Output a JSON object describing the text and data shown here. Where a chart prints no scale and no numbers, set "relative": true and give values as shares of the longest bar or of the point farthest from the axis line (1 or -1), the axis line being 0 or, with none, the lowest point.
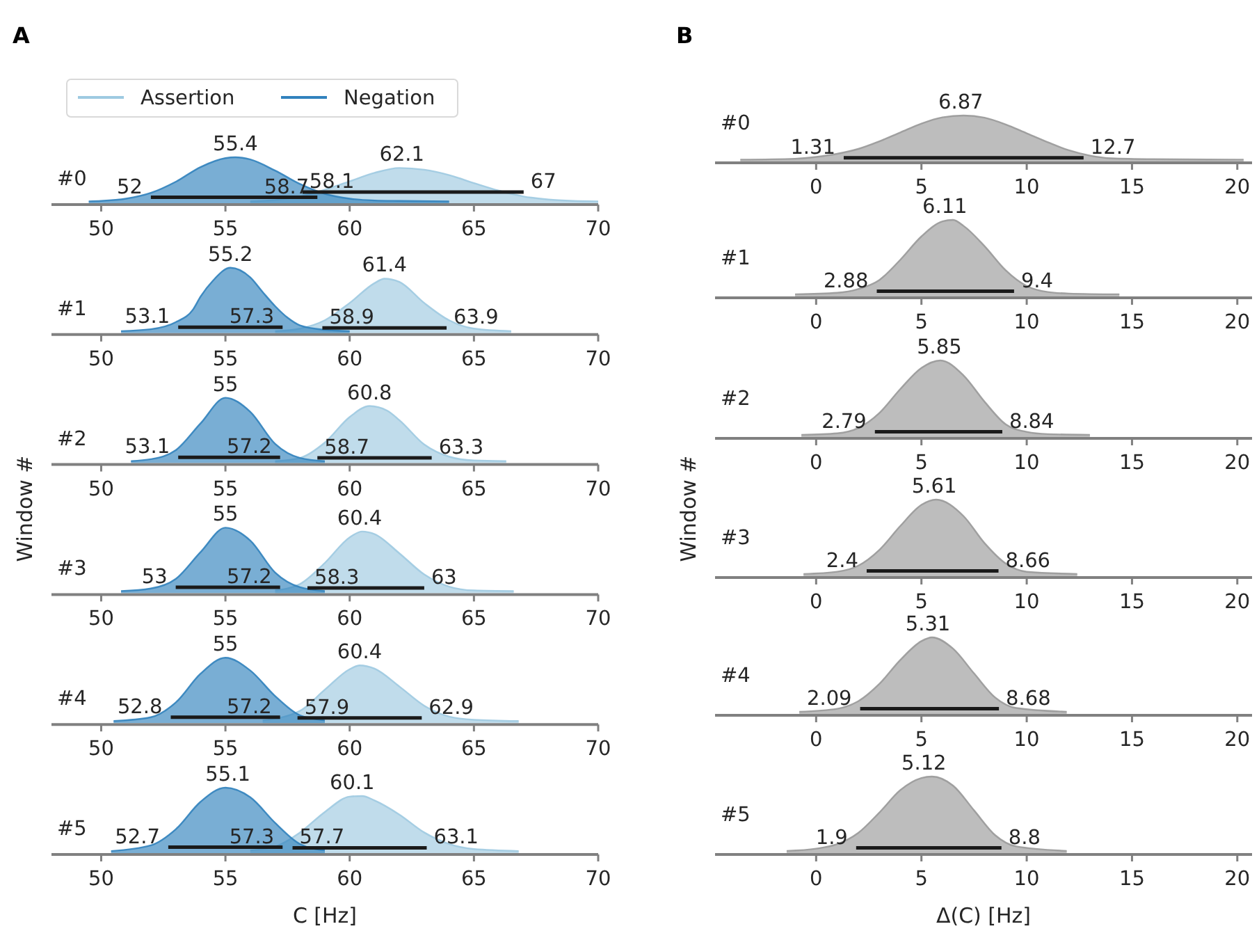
{
  "chart_data": [
    {
      "type": "area",
      "title": "A",
      "relative": true,
      "xlim": [
        48,
        70
      ],
      "xticks": [
        50,
        55,
        60,
        65,
        70
      ],
      "legend": "top",
      "series": [
        {
          "name": "Assertion",
          "color": "#9ecae1",
          "x": [
            56,
            57,
            58,
            59,
            60,
            61,
            62,
            63,
            64,
            65,
            66,
            67,
            68,
            69,
            70
          ],
          "values": [
            0.01,
            0.04,
            0.12,
            0.27,
            0.46,
            0.65,
            0.76,
            0.72,
            0.6,
            0.42,
            0.25,
            0.12,
            0.05,
            0.02,
            0.01
          ]
        },
        {
          "name": "Negation",
          "color": "#3182bd",
          "x": [
            49.5,
            50,
            51,
            52,
            53,
            54,
            55,
            55.4,
            56,
            57,
            58,
            59,
            60,
            61,
            62,
            64
          ],
          "values": [
            0.01,
            0.02,
            0.07,
            0.2,
            0.45,
            0.78,
            0.98,
            1,
            0.95,
            0.7,
            0.4,
            0.18,
            0.07,
            0.03,
            0.02,
            0.01
          ]
        },
        {
          "type": "line",
          "color": "#1a1a1a",
          "x": [
            58.1,
            67
          ],
          "values": [
            0.22,
            0.22
          ]
        },
        {
          "type": "line",
          "color": "#1a1a1a",
          "x": [
            52,
            58.7
          ],
          "values": [
            0.1,
            0.1
          ]
        }
      ],
      "annotations": [
        "#0",
        {
          "text": "55.4",
          "x": 55.4,
          "y": 1
        },
        {
          "text": "62.1",
          "x": 62.1,
          "y": 0.76
        },
        {
          "text": "52",
          "x": 52,
          "y": 0.1
        },
        {
          "text": "58.7",
          "x": 58.7,
          "y": 0.1
        },
        {
          "text": "58.1",
          "x": 58.1,
          "y": 0.22
        },
        {
          "text": "67",
          "x": 67,
          "y": 0.22
        }
      ]
    },
    {
      "type": "area",
      "relative": true,
      "xlim": [
        48,
        70
      ],
      "xticks": [
        50,
        55,
        60,
        65,
        70
      ],
      "series": [
        {
          "color": "#9ecae1",
          "x": [
            57,
            58,
            59,
            60,
            61,
            61.4,
            62,
            63,
            64,
            65,
            66.5
          ],
          "values": [
            0.01,
            0.05,
            0.18,
            0.45,
            0.76,
            0.83,
            0.78,
            0.45,
            0.18,
            0.05,
            0.01
          ]
        },
        {
          "color": "#3182bd",
          "x": [
            50.8,
            52,
            53,
            53.7,
            54,
            54.5,
            55.2,
            56,
            56.5,
            57,
            57.5,
            58,
            59,
            60
          ],
          "values": [
            0.01,
            0.04,
            0.15,
            0.35,
            0.55,
            0.8,
            1,
            0.85,
            0.62,
            0.4,
            0.22,
            0.1,
            0.03,
            0.01
          ]
        },
        {
          "type": "line",
          "color": "#1a1a1a",
          "x": [
            58.9,
            63.9
          ],
          "values": [
            0.06,
            0.06
          ]
        },
        {
          "type": "line",
          "color": "#1a1a1a",
          "x": [
            53.1,
            57.3
          ],
          "values": [
            0.07,
            0.07
          ]
        }
      ],
      "annotations": [
        "#1",
        {
          "text": "55.2",
          "x": 55.2,
          "y": 1
        },
        {
          "text": "61.4",
          "x": 61.4,
          "y": 0.83
        },
        {
          "text": "53.1",
          "x": 53.1,
          "y": 0.07
        },
        {
          "text": "57.3",
          "x": 57.3,
          "y": 0.07
        },
        {
          "text": "58.9",
          "x": 58.9,
          "y": 0.06
        },
        {
          "text": "63.9",
          "x": 63.9,
          "y": 0.06
        }
      ]
    },
    {
      "type": "area",
      "relative": true,
      "xlim": [
        48,
        70
      ],
      "xticks": [
        50,
        55,
        60,
        65,
        70
      ],
      "series": [
        {
          "color": "#9ecae1",
          "x": [
            57,
            58,
            59,
            60,
            60.8,
            61.5,
            62,
            63,
            64,
            65,
            66.3
          ],
          "values": [
            0.01,
            0.06,
            0.3,
            0.7,
            0.87,
            0.8,
            0.65,
            0.27,
            0.08,
            0.02,
            0.01
          ]
        },
        {
          "color": "#3182bd",
          "x": [
            51.2,
            52,
            53,
            54,
            55,
            56,
            57,
            58,
            59
          ],
          "values": [
            0.01,
            0.04,
            0.18,
            0.6,
            1,
            0.78,
            0.28,
            0.06,
            0.01
          ]
        },
        {
          "type": "line",
          "color": "#1a1a1a",
          "x": [
            58.7,
            63.3
          ],
          "values": [
            0.06,
            0.06
          ]
        },
        {
          "type": "line",
          "color": "#1a1a1a",
          "x": [
            53.1,
            57.2
          ],
          "values": [
            0.07,
            0.07
          ]
        }
      ],
      "annotations": [
        "#2",
        {
          "text": "55",
          "x": 55,
          "y": 1
        },
        {
          "text": "60.8",
          "x": 60.8,
          "y": 0.87
        },
        {
          "text": "53.1",
          "x": 53.1,
          "y": 0.07
        },
        {
          "text": "57.2",
          "x": 57.2,
          "y": 0.07
        },
        {
          "text": "58.7",
          "x": 58.7,
          "y": 0.06
        },
        {
          "text": "63.3",
          "x": 63.3,
          "y": 0.06
        }
      ]
    },
    {
      "type": "area",
      "relative": true,
      "ylabel": "Window #",
      "xlim": [
        48,
        70
      ],
      "xticks": [
        50,
        55,
        60,
        65,
        70
      ],
      "series": [
        {
          "color": "#9ecae1",
          "x": [
            57,
            58,
            59,
            60,
            60.5,
            61,
            62,
            63,
            64,
            65,
            66.6
          ],
          "values": [
            0.02,
            0.12,
            0.45,
            0.85,
            0.94,
            0.9,
            0.6,
            0.27,
            0.08,
            0.02,
            0.01
          ]
        },
        {
          "color": "#3182bd",
          "x": [
            50.8,
            52,
            53,
            54,
            55,
            56,
            57,
            58,
            59
          ],
          "values": [
            0.01,
            0.05,
            0.2,
            0.62,
            1,
            0.8,
            0.3,
            0.07,
            0.01
          ]
        },
        {
          "type": "line",
          "color": "#1a1a1a",
          "x": [
            58.3,
            63
          ],
          "values": [
            0.06,
            0.06
          ]
        },
        {
          "type": "line",
          "color": "#1a1a1a",
          "x": [
            53,
            57.2
          ],
          "values": [
            0.07,
            0.07
          ]
        }
      ],
      "annotations": [
        "#3",
        {
          "text": "55",
          "x": 55,
          "y": 1
        },
        {
          "text": "60.4",
          "x": 60.4,
          "y": 0.94
        },
        {
          "text": "53",
          "x": 53,
          "y": 0.07
        },
        {
          "text": "57.2",
          "x": 57.2,
          "y": 0.07
        },
        {
          "text": "58.3",
          "x": 58.3,
          "y": 0.06
        },
        {
          "text": "63",
          "x": 63,
          "y": 0.06
        }
      ]
    },
    {
      "type": "area",
      "relative": true,
      "xlim": [
        48,
        70
      ],
      "xticks": [
        50,
        55,
        60,
        65,
        70
      ],
      "series": [
        {
          "color": "#9ecae1",
          "x": [
            56.5,
            58,
            59,
            60,
            60.4,
            61,
            62,
            63,
            64,
            65,
            66.8
          ],
          "values": [
            0.02,
            0.17,
            0.5,
            0.82,
            0.88,
            0.83,
            0.55,
            0.25,
            0.08,
            0.03,
            0.01
          ]
        },
        {
          "color": "#3182bd",
          "x": [
            50.5,
            52,
            53,
            54,
            55,
            56,
            57,
            58,
            59
          ],
          "values": [
            0.01,
            0.07,
            0.3,
            0.75,
            1,
            0.8,
            0.4,
            0.1,
            0.02
          ]
        },
        {
          "type": "line",
          "color": "#1a1a1a",
          "x": [
            57.9,
            62.9
          ],
          "values": [
            0.06,
            0.06
          ]
        },
        {
          "type": "line",
          "color": "#1a1a1a",
          "x": [
            52.8,
            57.2
          ],
          "values": [
            0.07,
            0.07
          ]
        }
      ],
      "annotations": [
        "#4",
        {
          "text": "55",
          "x": 55,
          "y": 1
        },
        {
          "text": "60.4",
          "x": 60.4,
          "y": 0.88
        },
        {
          "text": "52.8",
          "x": 52.8,
          "y": 0.07
        },
        {
          "text": "57.2",
          "x": 57.2,
          "y": 0.07
        },
        {
          "text": "57.9",
          "x": 57.9,
          "y": 0.06
        },
        {
          "text": "62.9",
          "x": 62.9,
          "y": 0.06
        }
      ]
    },
    {
      "type": "area",
      "relative": true,
      "xlabel": "C [Hz]",
      "xlim": [
        48,
        70
      ],
      "xticks": [
        50,
        55,
        60,
        65,
        70
      ],
      "series": [
        {
          "color": "#9ecae1",
          "x": [
            56,
            57,
            58,
            59,
            60,
            60.5,
            61,
            62,
            63,
            64,
            65,
            66.8
          ],
          "values": [
            0.02,
            0.08,
            0.3,
            0.62,
            0.86,
            0.87,
            0.8,
            0.58,
            0.3,
            0.12,
            0.04,
            0.01
          ]
        },
        {
          "color": "#3182bd",
          "x": [
            50.4,
            52,
            53,
            54,
            55,
            56,
            57,
            58,
            59
          ],
          "values": [
            0.01,
            0.1,
            0.35,
            0.78,
            1,
            0.85,
            0.45,
            0.12,
            0.02
          ]
        },
        {
          "type": "line",
          "color": "#1a1a1a",
          "x": [
            57.7,
            63.1
          ],
          "values": [
            0.06,
            0.06
          ]
        },
        {
          "type": "line",
          "color": "#1a1a1a",
          "x": [
            52.7,
            57.3
          ],
          "values": [
            0.07,
            0.07
          ]
        }
      ],
      "annotations": [
        "#5",
        {
          "text": "55.1",
          "x": 55.1,
          "y": 1
        },
        {
          "text": "60.1",
          "x": 60.1,
          "y": 0.87
        },
        {
          "text": "52.7",
          "x": 52.7,
          "y": 0.07
        },
        {
          "text": "57.3",
          "x": 57.3,
          "y": 0.07
        },
        {
          "text": "57.7",
          "x": 57.7,
          "y": 0.06
        },
        {
          "text": "63.1",
          "x": 63.1,
          "y": 0.06
        }
      ]
    },
    {
      "type": "area",
      "title": "B",
      "relative": true,
      "xlim": [
        -4.8,
        20.7
      ],
      "xticks": [
        0,
        5,
        10,
        15,
        20
      ],
      "series": [
        {
          "color": "#999999",
          "x": [
            -3.6,
            -1,
            0,
            1,
            2,
            3,
            4,
            5,
            6,
            7,
            8,
            9,
            10,
            11,
            12,
            13,
            14,
            16,
            20.3
          ],
          "values": [
            0.01,
            0.03,
            0.07,
            0.14,
            0.25,
            0.42,
            0.62,
            0.82,
            0.96,
            1,
            0.95,
            0.8,
            0.6,
            0.4,
            0.22,
            0.1,
            0.04,
            0.02,
            0.01
          ]
        },
        {
          "type": "line",
          "color": "#1a1a1a",
          "x": [
            1.31,
            12.7
          ],
          "values": [
            0.05,
            0.05
          ]
        }
      ],
      "annotations": [
        "#0",
        {
          "text": "6.87",
          "x": 6.87,
          "y": 1
        },
        {
          "text": "1.31",
          "x": 1.31,
          "y": 0.05
        },
        {
          "text": "12.7",
          "x": 12.7,
          "y": 0.05
        }
      ]
    },
    {
      "type": "area",
      "relative": true,
      "xlim": [
        -4.8,
        20.7
      ],
      "xticks": [
        0,
        5,
        10,
        15,
        20
      ],
      "series": [
        {
          "color": "#999999",
          "x": [
            -1,
            1,
            2,
            3,
            4,
            5,
            6,
            6.5,
            7,
            8,
            9,
            10,
            11,
            12,
            14.4
          ],
          "values": [
            0.01,
            0.03,
            0.08,
            0.2,
            0.47,
            0.78,
            0.98,
            1,
            0.92,
            0.65,
            0.33,
            0.12,
            0.04,
            0.02,
            0.01
          ]
        },
        {
          "type": "line",
          "color": "#1a1a1a",
          "x": [
            2.88,
            9.4
          ],
          "values": [
            0.05,
            0.05
          ]
        }
      ],
      "annotations": [
        "#1",
        {
          "text": "6.11",
          "x": 6.11,
          "y": 1
        },
        {
          "text": "2.88",
          "x": 2.88,
          "y": 0.05
        },
        {
          "text": "9.4",
          "x": 9.4,
          "y": 0.05
        }
      ]
    },
    {
      "type": "area",
      "relative": true,
      "xlim": [
        -4.8,
        20.7
      ],
      "xticks": [
        0,
        5,
        10,
        15,
        20
      ],
      "series": [
        {
          "color": "#999999",
          "x": [
            -0.7,
            1,
            2,
            3,
            4,
            5,
            5.9,
            7,
            8,
            9,
            10,
            11,
            13
          ],
          "values": [
            0.01,
            0.03,
            0.1,
            0.3,
            0.62,
            0.9,
            1,
            0.8,
            0.45,
            0.15,
            0.05,
            0.02,
            0.01
          ]
        },
        {
          "type": "line",
          "color": "#1a1a1a",
          "x": [
            2.79,
            8.84
          ],
          "values": [
            0.05,
            0.05
          ]
        }
      ],
      "annotations": [
        "#2",
        {
          "text": "5.85",
          "x": 5.85,
          "y": 1
        },
        {
          "text": "2.79",
          "x": 2.79,
          "y": 0.05
        },
        {
          "text": "8.84",
          "x": 8.84,
          "y": 0.05
        }
      ]
    },
    {
      "type": "area",
      "relative": true,
      "ylabel": "Window #",
      "xlim": [
        -4.8,
        20.7
      ],
      "xticks": [
        0,
        5,
        10,
        15,
        20
      ],
      "series": [
        {
          "color": "#999999",
          "x": [
            -0.6,
            1,
            2,
            3,
            4,
            5,
            5.7,
            7,
            8,
            9,
            10,
            12.4
          ],
          "values": [
            0.01,
            0.04,
            0.12,
            0.33,
            0.65,
            0.93,
            1,
            0.78,
            0.42,
            0.15,
            0.04,
            0.01
          ]
        },
        {
          "type": "line",
          "color": "#1a1a1a",
          "x": [
            2.4,
            8.66
          ],
          "values": [
            0.05,
            0.05
          ]
        }
      ],
      "annotations": [
        "#3",
        {
          "text": "5.61",
          "x": 5.61,
          "y": 1
        },
        {
          "text": "2.4",
          "x": 2.4,
          "y": 0.05
        },
        {
          "text": "8.66",
          "x": 8.66,
          "y": 0.05
        }
      ]
    },
    {
      "type": "area",
      "relative": true,
      "xlim": [
        -4.8,
        20.7
      ],
      "xticks": [
        0,
        5,
        10,
        15,
        20
      ],
      "series": [
        {
          "color": "#999999",
          "x": [
            -0.8,
            1,
            2,
            3,
            4,
            5,
            5.5,
            6.5,
            7.5,
            8.5,
            9.5,
            11.9
          ],
          "values": [
            0.01,
            0.05,
            0.15,
            0.38,
            0.7,
            0.95,
            1,
            0.85,
            0.52,
            0.2,
            0.06,
            0.01
          ]
        },
        {
          "type": "line",
          "color": "#1a1a1a",
          "x": [
            2.09,
            8.68
          ],
          "values": [
            0.05,
            0.05
          ]
        }
      ],
      "annotations": [
        "#4",
        {
          "text": "5.31",
          "x": 5.31,
          "y": 1
        },
        {
          "text": "2.09",
          "x": 2.09,
          "y": 0.05
        },
        {
          "text": "8.68",
          "x": 8.68,
          "y": 0.05
        }
      ]
    },
    {
      "type": "area",
      "relative": true,
      "xlabel": "Δ(C) [Hz]",
      "xlim": [
        -4.8,
        20.7
      ],
      "xticks": [
        0,
        5,
        10,
        15,
        20
      ],
      "series": [
        {
          "color": "#999999",
          "x": [
            -1.4,
            0,
            1,
            2,
            3,
            4,
            5,
            5.5,
            6.5,
            7.5,
            8.5,
            9.5,
            11.9
          ],
          "values": [
            0.01,
            0.04,
            0.1,
            0.25,
            0.52,
            0.82,
            0.98,
            1,
            0.88,
            0.55,
            0.22,
            0.07,
            0.01
          ]
        },
        {
          "type": "line",
          "color": "#1a1a1a",
          "x": [
            1.9,
            8.8
          ],
          "values": [
            0.05,
            0.05
          ]
        }
      ],
      "annotations": [
        "#5",
        {
          "text": "5.12",
          "x": 5.12,
          "y": 1
        },
        {
          "text": "1.9",
          "x": 1.9,
          "y": 0.05
        },
        {
          "text": "8.8",
          "x": 8.8,
          "y": 0.05
        }
      ]
    }
  ]
}
